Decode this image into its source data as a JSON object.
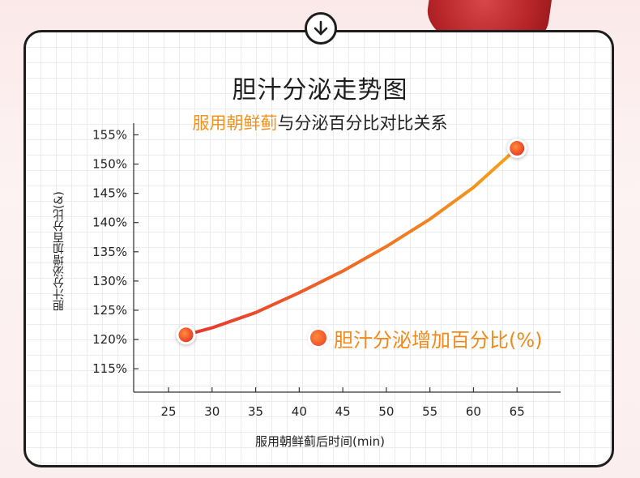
{
  "title": "胆汁分泌走势图",
  "subtitle": {
    "highlight": "服用朝鲜蓟",
    "rest": "与分泌百分比对比关系"
  },
  "colors": {
    "accent": "#f0921e",
    "line_start": "#e8342e",
    "line_end": "#f5a21c",
    "card_border": "#1d1d1d"
  },
  "icons": {
    "badge": "arrow-down-circle-icon"
  },
  "chart_data": {
    "type": "line",
    "title": "胆汁分泌走势图",
    "xlabel": "服用朝鲜蓟后时间(min)",
    "ylabel": "胆汁分泌增加百分比(&)",
    "x_ticks": [
      25,
      30,
      35,
      40,
      45,
      50,
      55,
      60,
      65
    ],
    "y_ticks": [
      115,
      120,
      125,
      130,
      135,
      140,
      145,
      150,
      155
    ],
    "y_tick_labels": [
      "115%",
      "120%",
      "125%",
      "130%",
      "135%",
      "140%",
      "145%",
      "150%",
      "155%"
    ],
    "xlim": [
      21,
      70
    ],
    "ylim": [
      111,
      157
    ],
    "grid": false,
    "legend_position": "center-right",
    "series": [
      {
        "name": "胆汁分泌增加百分比(%)",
        "x": [
          27,
          30,
          35,
          40,
          45,
          50,
          55,
          60,
          65
        ],
        "y": [
          120.8,
          122.0,
          124.6,
          128.0,
          131.7,
          135.9,
          140.6,
          146.0,
          152.7
        ],
        "markers": [
          {
            "x": 27,
            "y": 120.8
          },
          {
            "x": 65,
            "y": 152.7
          }
        ]
      }
    ]
  }
}
